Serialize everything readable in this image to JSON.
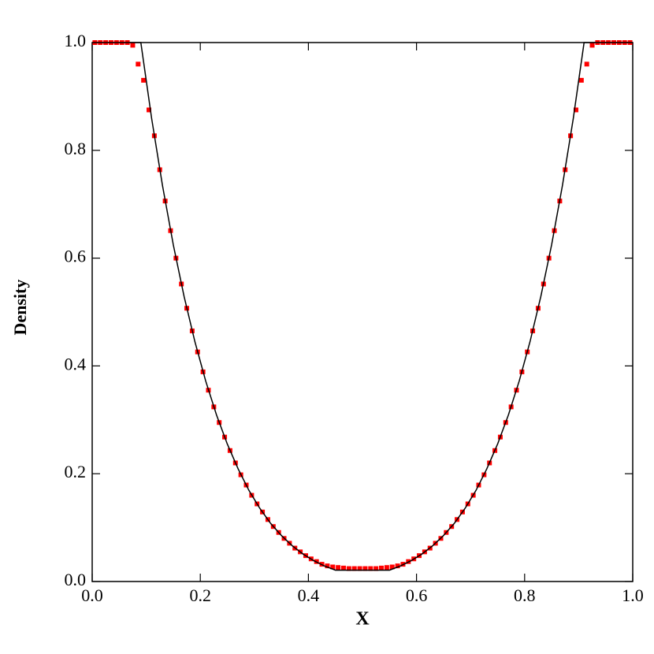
{
  "chart_data": {
    "type": "line",
    "x_label": "X",
    "y_label": "Density",
    "xlim": [
      0,
      1
    ],
    "ylim": [
      0,
      1
    ],
    "xticks": [
      {
        "value": 0,
        "label": "0.0"
      },
      0.2,
      0.4,
      0.6,
      0.8,
      {
        "value": 1,
        "label": "1.0"
      }
    ],
    "yticks": [
      {
        "value": 0,
        "label": "0.0"
      },
      0.2,
      0.4,
      0.6,
      0.8,
      {
        "value": 1,
        "label": "1.0"
      }
    ],
    "series": [
      {
        "style": "markers",
        "color": "#ff0000",
        "x": [
          0.005,
          0.015,
          0.025,
          0.035,
          0.045,
          0.055,
          0.065,
          0.075,
          0.085,
          0.095,
          0.105,
          0.115,
          0.125,
          0.135,
          0.145,
          0.155,
          0.165,
          0.175,
          0.185,
          0.195,
          0.205,
          0.215,
          0.225,
          0.235,
          0.245,
          0.255,
          0.265,
          0.275,
          0.285,
          0.295,
          0.305,
          0.315,
          0.325,
          0.335,
          0.345,
          0.355,
          0.365,
          0.375,
          0.385,
          0.395,
          0.405,
          0.415,
          0.425,
          0.435,
          0.445,
          0.455,
          0.465,
          0.475,
          0.485,
          0.495,
          0.505,
          0.515,
          0.525,
          0.535,
          0.545,
          0.555,
          0.565,
          0.575,
          0.585,
          0.595,
          0.605,
          0.615,
          0.625,
          0.635,
          0.645,
          0.655,
          0.665,
          0.675,
          0.685,
          0.695,
          0.705,
          0.715,
          0.725,
          0.735,
          0.745,
          0.755,
          0.765,
          0.775,
          0.785,
          0.795,
          0.805,
          0.815,
          0.825,
          0.835,
          0.845,
          0.855,
          0.865,
          0.875,
          0.885,
          0.895,
          0.905,
          0.915,
          0.925,
          0.935,
          0.945,
          0.955,
          0.965,
          0.975,
          0.985,
          0.995
        ],
        "values": [
          1,
          1,
          1,
          1,
          1,
          1,
          1,
          0.995,
          0.96,
          0.93,
          0.875,
          0.827,
          0.764,
          0.706,
          0.651,
          0.6,
          0.552,
          0.507,
          0.465,
          0.426,
          0.389,
          0.355,
          0.324,
          0.295,
          0.268,
          0.243,
          0.22,
          0.198,
          0.179,
          0.16,
          0.144,
          0.129,
          0.115,
          0.102,
          0.091,
          0.08,
          0.071,
          0.062,
          0.055,
          0.048,
          0.042,
          0.037,
          0.032,
          0.029,
          0.027,
          0.026,
          0.025,
          0.024,
          0.024,
          0.024,
          0.024,
          0.024,
          0.024,
          0.025,
          0.026,
          0.027,
          0.029,
          0.032,
          0.037,
          0.042,
          0.048,
          0.055,
          0.062,
          0.071,
          0.08,
          0.091,
          0.102,
          0.115,
          0.129,
          0.144,
          0.16,
          0.179,
          0.198,
          0.22,
          0.243,
          0.268,
          0.295,
          0.324,
          0.355,
          0.389,
          0.426,
          0.465,
          0.507,
          0.552,
          0.6,
          0.651,
          0.706,
          0.764,
          0.827,
          0.875,
          0.93,
          0.96,
          0.995,
          1,
          1,
          1,
          1,
          1,
          1,
          1
        ]
      },
      {
        "style": "line",
        "color": "#000000",
        "x": [
          0,
          0.09,
          0.11,
          0.13,
          0.15,
          0.17,
          0.19,
          0.21,
          0.23,
          0.25,
          0.27,
          0.29,
          0.31,
          0.33,
          0.35,
          0.37,
          0.39,
          0.41,
          0.43,
          0.45,
          0.55,
          0.57,
          0.59,
          0.61,
          0.63,
          0.65,
          0.67,
          0.69,
          0.71,
          0.73,
          0.75,
          0.77,
          0.79,
          0.81,
          0.83,
          0.85,
          0.87,
          0.89,
          0.91,
          1
        ],
        "values": [
          1,
          1,
          0.859,
          0.735,
          0.625,
          0.529,
          0.445,
          0.372,
          0.309,
          0.255,
          0.209,
          0.169,
          0.136,
          0.108,
          0.0854,
          0.0664,
          0.051,
          0.0386,
          0.0287,
          0.021,
          0.021,
          0.0287,
          0.0386,
          0.051,
          0.0664,
          0.0854,
          0.108,
          0.136,
          0.169,
          0.209,
          0.255,
          0.309,
          0.372,
          0.445,
          0.529,
          0.625,
          0.735,
          0.859,
          1,
          1
        ]
      }
    ]
  }
}
